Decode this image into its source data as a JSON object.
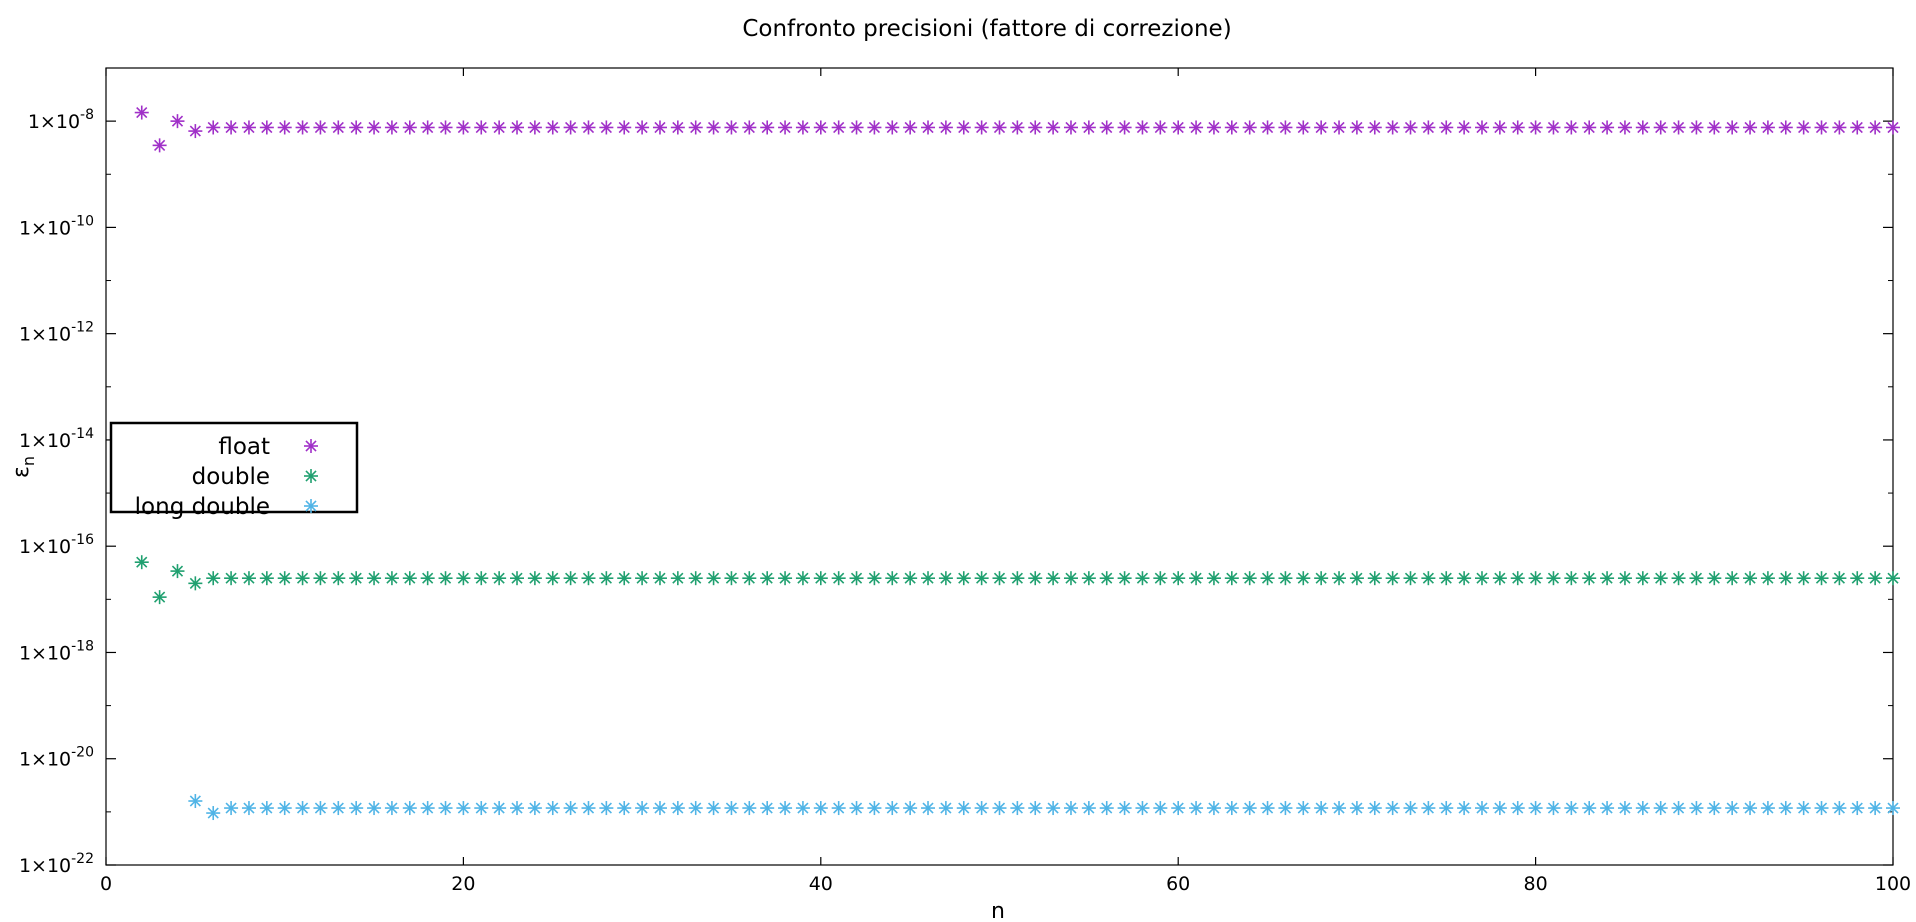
{
  "chart_data": {
    "type": "scatter",
    "title": "Confronto precisioni (fattore di correzione)",
    "xlabel": "n",
    "ylabel": "ε",
    "ylabel_sub": "n",
    "xlim": [
      0,
      100
    ],
    "ylim": [
      1e-22,
      1e-07
    ],
    "y_scale": "log",
    "grid": false,
    "legend_position": "left",
    "x_ticks": [
      0,
      20,
      40,
      60,
      80,
      100
    ],
    "y_ticks": [
      {
        "base": "1×10",
        "exp": "-22",
        "value": 1e-22
      },
      {
        "base": "1×10",
        "exp": "-20",
        "value": 1e-20
      },
      {
        "base": "1×10",
        "exp": "-18",
        "value": 1e-18
      },
      {
        "base": "1×10",
        "exp": "-16",
        "value": 1e-16
      },
      {
        "base": "1×10",
        "exp": "-14",
        "value": 1e-14
      },
      {
        "base": "1×10",
        "exp": "-12",
        "value": 1e-12
      },
      {
        "base": "1×10",
        "exp": "-10",
        "value": 1e-10
      },
      {
        "base": "1×10",
        "exp": "-8",
        "value": 1e-08
      }
    ],
    "series": [
      {
        "name": "float",
        "color": "#a030c8",
        "points": [
          [
            2,
            1.45e-08
          ],
          [
            3,
            3.5e-09
          ],
          [
            4,
            1e-08
          ],
          [
            5,
            6.5e-09
          ]
        ],
        "steady": {
          "from": 6,
          "to": 100,
          "step": 1,
          "y": 7.6e-09
        }
      },
      {
        "name": "double",
        "color": "#20a070",
        "points": [
          [
            2,
            5e-17
          ],
          [
            3,
            1.1e-17
          ],
          [
            4,
            3.4e-17
          ],
          [
            5,
            2e-17
          ]
        ],
        "steady": {
          "from": 6,
          "to": 100,
          "step": 1,
          "y": 2.5e-17
        }
      },
      {
        "name": "long double",
        "color": "#50b4e6",
        "points": [
          [
            5,
            1.6e-21
          ],
          [
            6,
            9.5e-22
          ]
        ],
        "steady": {
          "from": 7,
          "to": 100,
          "step": 1,
          "y": 1.18e-21
        }
      }
    ]
  }
}
